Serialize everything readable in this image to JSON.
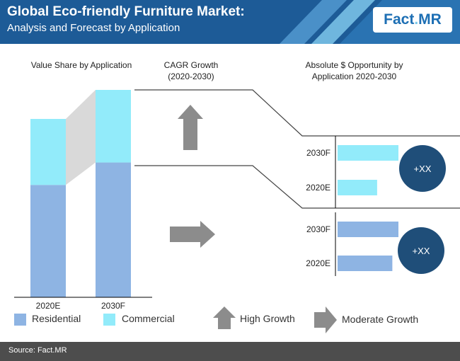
{
  "header": {
    "title": "Global Eco-friendly  Furniture Market:",
    "subtitle": "Analysis and Forecast by Application"
  },
  "logo": {
    "fact": "Fact",
    "dot": ".",
    "mr": "MR"
  },
  "columns": {
    "value_share": "Value Share by Application",
    "cagr": "CAGR Growth (2020-2030)",
    "opportunity": "Absolute $ Opportunity by Application 2020-2030"
  },
  "colors": {
    "residential": "#8eb4e3",
    "commercial": "#92ebfa",
    "connector": "#d9d9d9",
    "arrow": "#8c8c8c",
    "circle": "#1f4e79",
    "header": "#1d5b97",
    "footer": "#4d4d4d"
  },
  "chart_data": [
    {
      "type": "bar",
      "stacked": true,
      "categories": [
        "2020E",
        "2030F"
      ],
      "series": [
        {
          "name": "Residential",
          "values": [
            63,
            65
          ]
        },
        {
          "name": "Commercial",
          "values": [
            37,
            35
          ]
        }
      ],
      "ylim": [
        0,
        100
      ]
    },
    {
      "type": "bar",
      "orientation": "horizontal",
      "segment": "Commercial",
      "categories": [
        "2030F",
        "2020E"
      ],
      "values": [
        100,
        65
      ],
      "growth_indicator": "High Growth",
      "annotation": "+XX"
    },
    {
      "type": "bar",
      "orientation": "horizontal",
      "segment": "Residential",
      "categories": [
        "2030F",
        "2020E"
      ],
      "values": [
        100,
        90
      ],
      "growth_indicator": "Moderate Growth",
      "annotation": "+XX"
    }
  ],
  "legend": {
    "residential": "Residential",
    "commercial": "Commercial",
    "high_growth": "High Growth",
    "moderate_growth": "Moderate Growth"
  },
  "footer": {
    "source": "Source: Fact.MR"
  }
}
